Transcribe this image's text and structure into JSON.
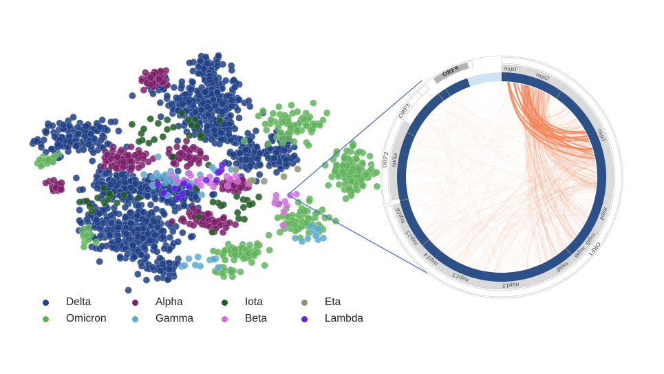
{
  "chart_data": [
    {
      "type": "scatter",
      "title": "",
      "xlabel": "",
      "ylabel": "",
      "xlim": [
        0,
        100
      ],
      "ylim": [
        0,
        100
      ],
      "grid": false,
      "legend_placement": "bottom",
      "legend": [
        {
          "name": "Delta",
          "color": "#1f3f86"
        },
        {
          "name": "Alpha",
          "color": "#7e1f6b"
        },
        {
          "name": "Iota",
          "color": "#1e5c22"
        },
        {
          "name": "Eta",
          "color": "#8f9573"
        },
        {
          "name": "Omicron",
          "color": "#5fb45a"
        },
        {
          "name": "Gamma",
          "color": "#5aa9cf"
        },
        {
          "name": "Beta",
          "color": "#d46be0"
        },
        {
          "name": "Lambda",
          "color": "#6a1bf0"
        }
      ],
      "clusters": [
        {
          "variant": "Delta",
          "x": 52.6,
          "y": 94,
          "sx": 4,
          "sy": 4,
          "n": 40
        },
        {
          "variant": "Delta",
          "x": 52.6,
          "y": 77.6,
          "sx": 8,
          "sy": 10,
          "n": 260
        },
        {
          "variant": "Delta",
          "x": 37.9,
          "y": 86.6,
          "sx": 3,
          "sy": 3,
          "n": 20
        },
        {
          "variant": "Delta",
          "x": 12.6,
          "y": 62.7,
          "sx": 8,
          "sy": 5,
          "n": 150
        },
        {
          "variant": "Delta",
          "x": 31.6,
          "y": 20.9,
          "sx": 8,
          "sy": 9,
          "n": 250
        },
        {
          "variant": "Delta",
          "x": 25.3,
          "y": 41.8,
          "sx": 7,
          "sy": 5,
          "n": 120
        },
        {
          "variant": "Delta",
          "x": 65.3,
          "y": 56.7,
          "sx": 4,
          "sy": 7,
          "n": 80
        },
        {
          "variant": "Delta",
          "x": 42.1,
          "y": 38.8,
          "sx": 8,
          "sy": 5,
          "n": 130
        },
        {
          "variant": "Delta",
          "x": 75.8,
          "y": 56.7,
          "sx": 4,
          "sy": 6,
          "n": 70
        },
        {
          "variant": "Delta",
          "x": 56.8,
          "y": 65.7,
          "sx": 4,
          "sy": 4,
          "n": 50
        },
        {
          "variant": "Delta",
          "x": 40,
          "y": 6,
          "sx": 4,
          "sy": 3,
          "n": 40
        },
        {
          "variant": "Delta",
          "x": 18.9,
          "y": 26.9,
          "sx": 4,
          "sy": 5,
          "n": 40
        },
        {
          "variant": "Omicron",
          "x": 80,
          "y": 68.7,
          "sx": 7,
          "sy": 5,
          "n": 70
        },
        {
          "variant": "Omicron",
          "x": 96.8,
          "y": 47.8,
          "sx": 5,
          "sy": 7,
          "n": 110
        },
        {
          "variant": "Omicron",
          "x": 63.2,
          "y": 13.4,
          "sx": 5,
          "sy": 3,
          "n": 60
        },
        {
          "variant": "Omicron",
          "x": 82.1,
          "y": 26.9,
          "sx": 5,
          "sy": 5,
          "n": 60
        },
        {
          "variant": "Omicron",
          "x": 4.2,
          "y": 52.2,
          "sx": 3,
          "sy": 2,
          "n": 20
        },
        {
          "variant": "Omicron",
          "x": 58.9,
          "y": 4.5,
          "sx": 3,
          "sy": 2,
          "n": 15
        },
        {
          "variant": "Omicron",
          "x": 16.8,
          "y": 20.9,
          "sx": 2,
          "sy": 3,
          "n": 12
        },
        {
          "variant": "Alpha",
          "x": 36.8,
          "y": 88,
          "sx": 3,
          "sy": 3,
          "n": 40
        },
        {
          "variant": "Alpha",
          "x": 27.4,
          "y": 53.7,
          "sx": 5,
          "sy": 3,
          "n": 70
        },
        {
          "variant": "Alpha",
          "x": 52.6,
          "y": 26.9,
          "sx": 5,
          "sy": 3,
          "n": 60
        },
        {
          "variant": "Alpha",
          "x": 6.3,
          "y": 41.8,
          "sx": 2,
          "sy": 2,
          "n": 20
        },
        {
          "variant": "Alpha",
          "x": 46.3,
          "y": 55.2,
          "sx": 4,
          "sy": 3,
          "n": 40
        },
        {
          "variant": "Alpha",
          "x": 61,
          "y": 41.8,
          "sx": 4,
          "sy": 3,
          "n": 40
        },
        {
          "variant": "Iota",
          "x": 44.2,
          "y": 65.7,
          "sx": 10,
          "sy": 8,
          "n": 25
        },
        {
          "variant": "Iota",
          "x": 61,
          "y": 32.8,
          "sx": 8,
          "sy": 6,
          "n": 18
        },
        {
          "variant": "Iota",
          "x": 21,
          "y": 35.8,
          "sx": 6,
          "sy": 4,
          "n": 14
        },
        {
          "variant": "Gamma",
          "x": 44.2,
          "y": 44.8,
          "sx": 8,
          "sy": 5,
          "n": 22
        },
        {
          "variant": "Gamma",
          "x": 50.5,
          "y": 9,
          "sx": 5,
          "sy": 3,
          "n": 10
        },
        {
          "variant": "Gamma",
          "x": 86.3,
          "y": 20.9,
          "sx": 4,
          "sy": 3,
          "n": 10
        },
        {
          "variant": "Beta",
          "x": 52.6,
          "y": 44.8,
          "sx": 8,
          "sy": 4,
          "n": 18
        },
        {
          "variant": "Beta",
          "x": 75.8,
          "y": 32.8,
          "sx": 4,
          "sy": 4,
          "n": 10
        },
        {
          "variant": "Eta",
          "x": 69.5,
          "y": 47.8,
          "sx": 8,
          "sy": 6,
          "n": 6
        },
        {
          "variant": "Lambda",
          "x": 48.4,
          "y": 41.8,
          "sx": 8,
          "sy": 3,
          "n": 8
        },
        {
          "variant": "Lambda",
          "x": 56.8,
          "y": 47.8,
          "sx": 3,
          "sy": 3,
          "n": 5
        }
      ]
    },
    {
      "type": "chord",
      "genome_length_kb": 30,
      "segments": [
        {
          "label": "nsp1",
          "start": 0,
          "end": 0.8
        },
        {
          "label": "nsp2",
          "start": 0.8,
          "end": 2.9
        },
        {
          "label": "nsp3",
          "start": 2.9,
          "end": 8.3
        },
        {
          "label": "nsp4",
          "start": 8.3,
          "end": 10.0
        },
        {
          "label": "nsp5",
          "start": 10.0,
          "end": 10.8
        },
        {
          "label": "nsp6",
          "start": 10.8,
          "end": 11.5
        },
        {
          "label": "",
          "start": 11.5,
          "end": 11.8
        },
        {
          "label": "nsp8",
          "start": 11.8,
          "end": 12.5
        },
        {
          "label": "",
          "start": 12.5,
          "end": 13.2
        },
        {
          "label": "nsp12",
          "start": 13.2,
          "end": 16.0
        },
        {
          "label": "nsp13",
          "start": 16.0,
          "end": 17.7
        },
        {
          "label": "nsp14",
          "start": 17.7,
          "end": 19.1
        },
        {
          "label": "nsp15",
          "start": 19.1,
          "end": 20.2
        },
        {
          "label": "nsp16",
          "start": 20.2,
          "end": 21.3
        },
        {
          "label": "spike",
          "start": 21.5,
          "end": 25.0
        }
      ],
      "genes": [
        {
          "label": "ORF1",
          "start": 0,
          "end": 21.3,
          "style": "outline"
        },
        {
          "label": "ORF2",
          "start": 21.4,
          "end": 25.0,
          "style": "outline"
        },
        {
          "label": "ORF3",
          "start": 25.0,
          "end": 25.7,
          "style": "box"
        },
        {
          "label": "",
          "start": 25.7,
          "end": 26.3,
          "style": "box"
        },
        {
          "label": "",
          "start": 26.3,
          "end": 26.7,
          "style": "box"
        },
        {
          "label": "ORF9",
          "start": 27.1,
          "end": 28.6,
          "style": "filled"
        },
        {
          "label": "",
          "start": 28.6,
          "end": 28.8,
          "style": "box"
        }
      ],
      "coverage": [
        {
          "start": 0,
          "end": 28.4,
          "color": "#2c5088"
        },
        {
          "start": 28.4,
          "end": 30,
          "color": "#cfe3f3"
        }
      ],
      "chord_color": "#f5875a",
      "chord_bundles": [
        {
          "from": [
            0.3,
            1.4
          ],
          "to": [
            5.0,
            7.0
          ],
          "n": 14,
          "opacity": 0.85,
          "width": 1.8
        },
        {
          "from": [
            1.0,
            2.6
          ],
          "to": [
            3.5,
            8.3
          ],
          "n": 130,
          "opacity": 0.22,
          "width": 0.7
        },
        {
          "from": [
            1.0,
            2.0
          ],
          "to": [
            9.0,
            13.0
          ],
          "n": 40,
          "opacity": 0.25,
          "width": 0.7
        },
        {
          "from": [
            5.0,
            8.3
          ],
          "to": [
            10.0,
            20.0
          ],
          "n": 50,
          "opacity": 0.18,
          "width": 0.6
        },
        {
          "from": [
            0,
            28
          ],
          "to": [
            0,
            28
          ],
          "n": 160,
          "opacity": 0.1,
          "width": 0.6
        }
      ]
    }
  ]
}
